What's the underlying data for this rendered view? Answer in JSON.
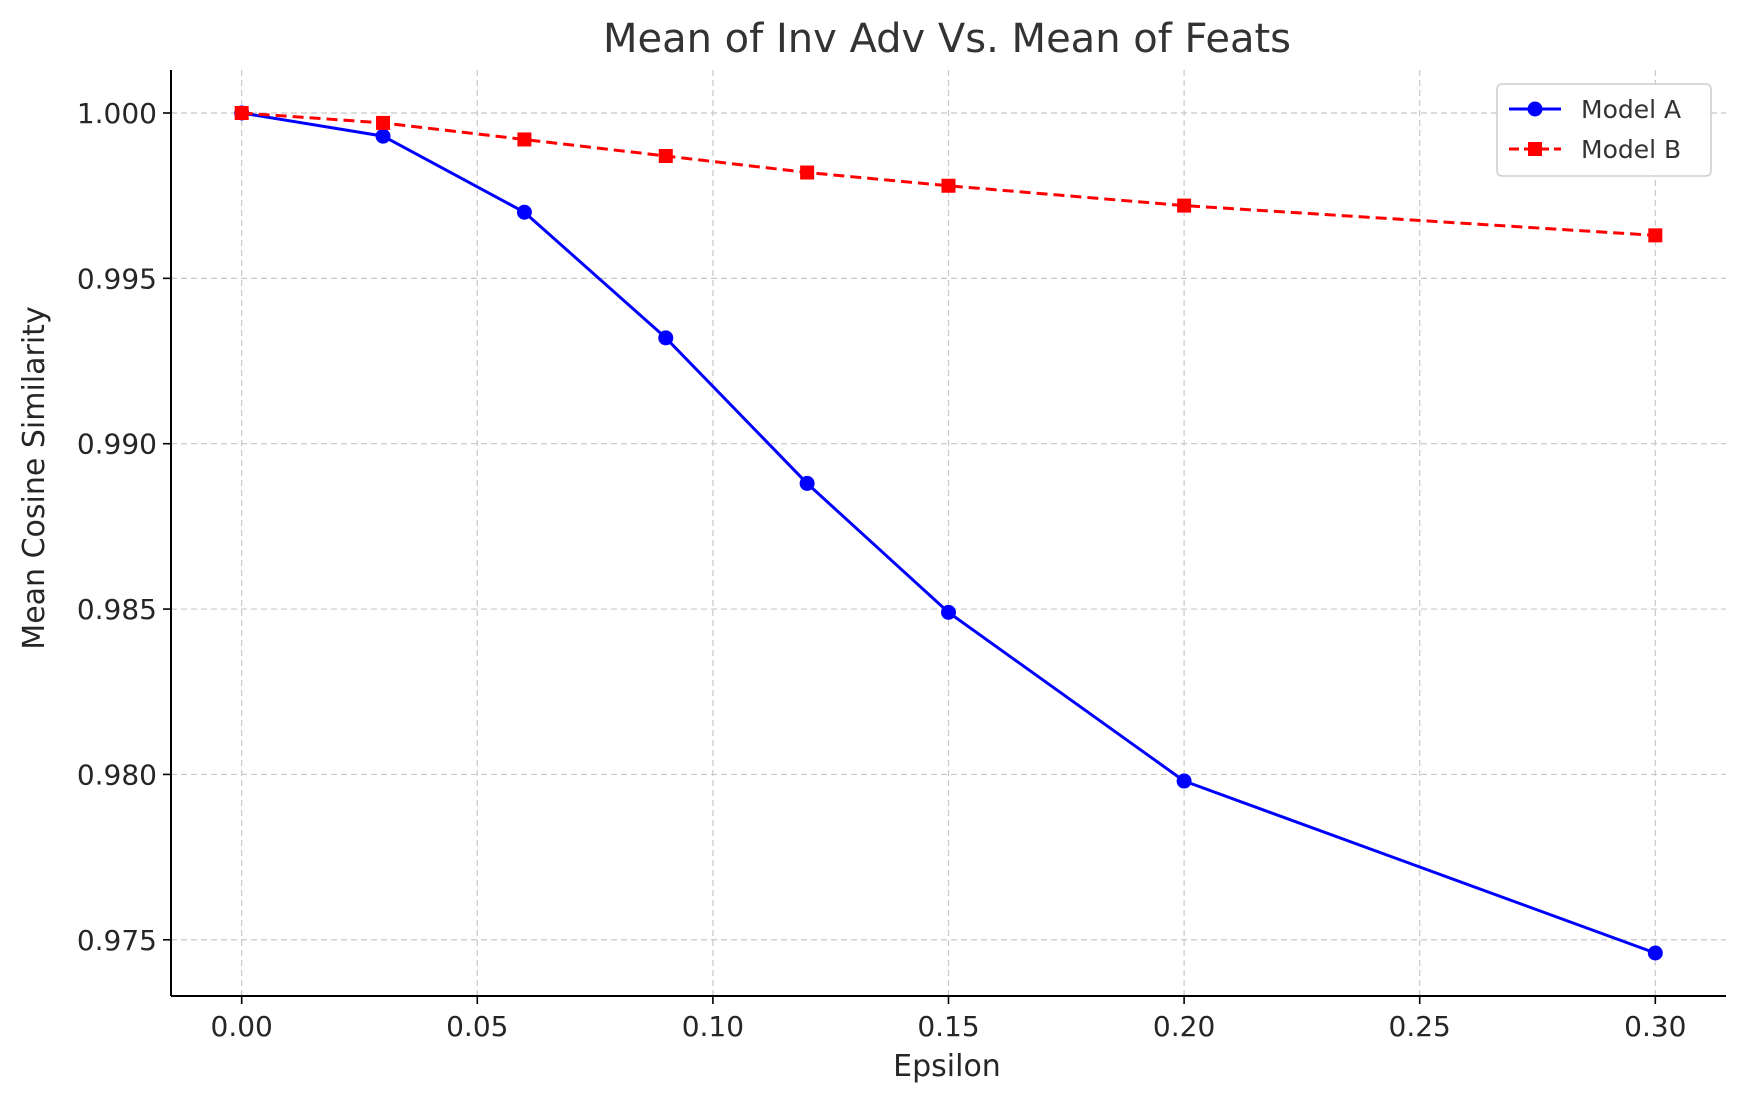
{
  "chart_data": {
    "type": "line",
    "title": "Mean of Inv Adv Vs. Mean of Feats",
    "xlabel": "Epsilon",
    "ylabel": "Mean Cosine Similarity",
    "xlim": [
      -0.015,
      0.315
    ],
    "ylim": [
      0.9733,
      1.0013
    ],
    "xticks": [
      0.0,
      0.05,
      0.1,
      0.15,
      0.2,
      0.25,
      0.3
    ],
    "xtick_labels": [
      "0.00",
      "0.05",
      "0.10",
      "0.15",
      "0.20",
      "0.25",
      "0.30"
    ],
    "yticks": [
      0.975,
      0.98,
      0.985,
      0.99,
      0.995,
      1.0
    ],
    "ytick_labels": [
      "0.975",
      "0.980",
      "0.985",
      "0.990",
      "0.995",
      "1.000"
    ],
    "grid": true,
    "legend_position": "top-right",
    "x": [
      0.0,
      0.03,
      0.06,
      0.09,
      0.12,
      0.15,
      0.2,
      0.3
    ],
    "series": [
      {
        "name": "Model A",
        "color": "#0000ff",
        "marker": "circle",
        "line_style": "solid",
        "values": [
          1.0,
          0.9993,
          0.997,
          0.9932,
          0.9888,
          0.9849,
          0.9798,
          0.9746
        ]
      },
      {
        "name": "Model B",
        "color": "#ff0000",
        "marker": "square",
        "line_style": "dashed",
        "values": [
          1.0,
          0.9997,
          0.9992,
          0.9987,
          0.9982,
          0.9978,
          0.9972,
          0.9963
        ]
      }
    ]
  }
}
